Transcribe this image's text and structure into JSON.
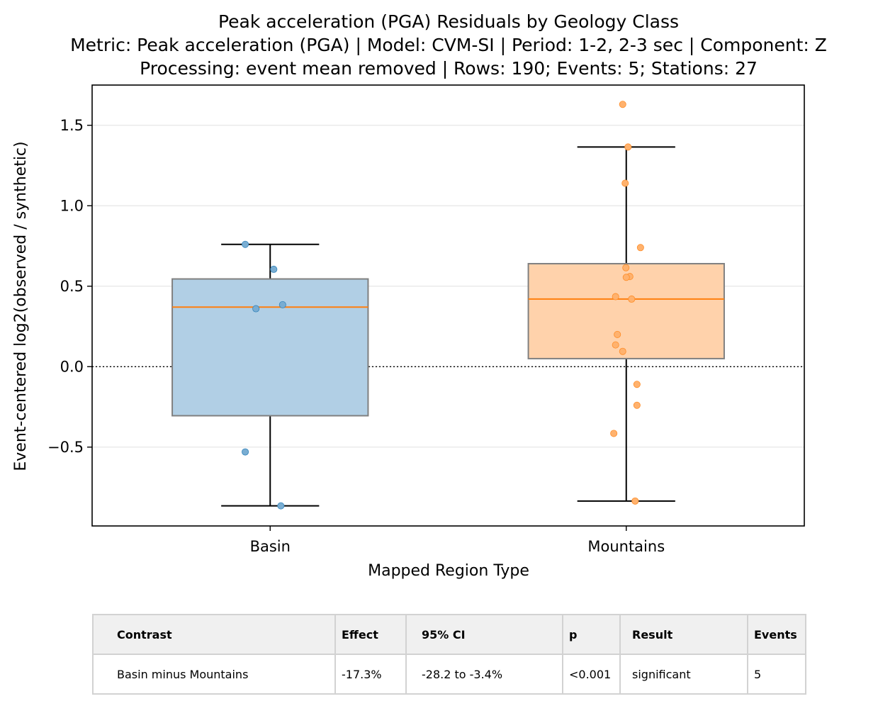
{
  "chart_data": {
    "type": "box",
    "title": "Peak acceleration (PGA) Residuals by Geology Class",
    "subtitle_lines": [
      "Metric: Peak acceleration (PGA) | Model: CVM-SI | Period: 1-2, 2-3 sec | Component: Z",
      "Processing: event mean removed | Rows: 190; Events: 5; Stations: 27"
    ],
    "xlabel": "Mapped Region Type",
    "ylabel": "Event-centered log2(observed / synthetic)",
    "ylim": [
      -0.99,
      1.75
    ],
    "yticks": [
      -0.5,
      0.0,
      0.5,
      1.0,
      1.5
    ],
    "ytick_labels": [
      "−0.5",
      "0.0",
      "0.5",
      "1.0",
      "1.5"
    ],
    "grid": "horizontal",
    "reference_line": 0.0,
    "categories": [
      "Basin",
      "Mountains"
    ],
    "boxes": [
      {
        "category": "Basin",
        "color": "#1f77b4",
        "whisker_low": -0.865,
        "q1": -0.305,
        "median": 0.37,
        "q3": 0.545,
        "whisker_high": 0.76,
        "points": [
          {
            "x": -0.07,
            "y": 0.76
          },
          {
            "x": 0.01,
            "y": 0.605
          },
          {
            "x": 0.035,
            "y": 0.385
          },
          {
            "x": -0.04,
            "y": 0.36
          },
          {
            "x": -0.07,
            "y": -0.53
          },
          {
            "x": 0.03,
            "y": -0.865
          }
        ]
      },
      {
        "category": "Mountains",
        "color": "#ff7f0e",
        "whisker_low": -0.835,
        "q1": 0.05,
        "median": 0.42,
        "q3": 0.64,
        "whisker_high": 1.365,
        "points": [
          {
            "x": -0.01,
            "y": 1.63
          },
          {
            "x": 0.005,
            "y": 1.365
          },
          {
            "x": -0.003,
            "y": 1.14
          },
          {
            "x": 0.04,
            "y": 0.74
          },
          {
            "x": -0.001,
            "y": 0.615
          },
          {
            "x": 0.01,
            "y": 0.56
          },
          {
            "x": 0.0,
            "y": 0.555
          },
          {
            "x": -0.03,
            "y": 0.435
          },
          {
            "x": 0.015,
            "y": 0.42
          },
          {
            "x": -0.025,
            "y": 0.2
          },
          {
            "x": -0.03,
            "y": 0.135
          },
          {
            "x": -0.01,
            "y": 0.095
          },
          {
            "x": 0.03,
            "y": -0.11
          },
          {
            "x": 0.03,
            "y": -0.24
          },
          {
            "x": -0.035,
            "y": -0.415
          },
          {
            "x": 0.025,
            "y": -0.835
          }
        ]
      }
    ]
  },
  "table": {
    "headers": [
      "Contrast",
      "Effect",
      "95% CI",
      "p",
      "Result",
      "Events"
    ],
    "rows": [
      [
        "Basin minus Mountains",
        "-17.3%",
        "-28.2 to -3.4%",
        "<0.001",
        "significant",
        "5"
      ]
    ]
  }
}
